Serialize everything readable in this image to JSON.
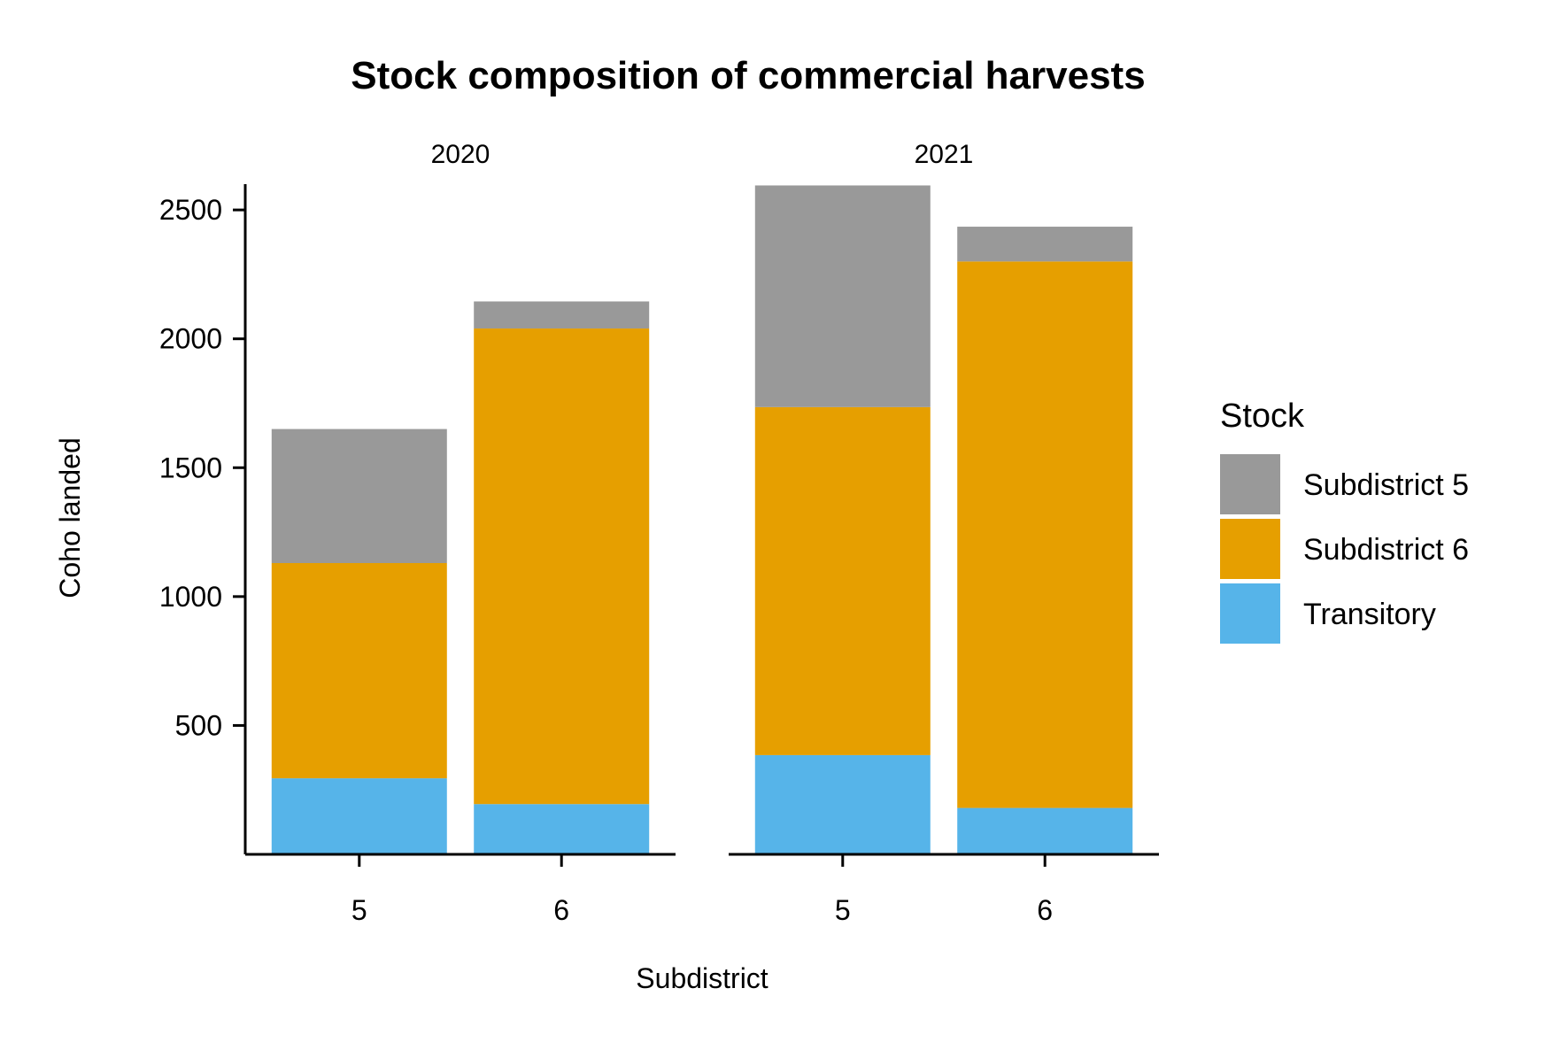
{
  "chart_data": {
    "type": "bar",
    "stacked": true,
    "title": "Stock composition of commercial harvests",
    "xlabel": "Subdistrict",
    "ylabel": "Coho landed",
    "ylim": [
      0,
      2600
    ],
    "yticks": [
      500,
      1000,
      1500,
      2000,
      2500
    ],
    "grid": false,
    "legend": {
      "title": "Stock",
      "placement": "right"
    },
    "facets": [
      {
        "label": "2020",
        "categories": [
          "5",
          "6"
        ],
        "series": [
          {
            "name": "Transitory",
            "values": [
              295,
              195
            ]
          },
          {
            "name": "Subdistrict 6",
            "values": [
              835,
              1845
            ]
          },
          {
            "name": "Subdistrict 5",
            "values": [
              520,
              105
            ]
          }
        ]
      },
      {
        "label": "2021",
        "categories": [
          "5",
          "6"
        ],
        "series": [
          {
            "name": "Transitory",
            "values": [
              385,
              180
            ]
          },
          {
            "name": "Subdistrict 6",
            "values": [
              1350,
              2120
            ]
          },
          {
            "name": "Subdistrict 5",
            "values": [
              860,
              135
            ]
          }
        ]
      }
    ],
    "legend_order": [
      "Subdistrict 5",
      "Subdistrict 6",
      "Transitory"
    ],
    "colors": {
      "Subdistrict 5": "#999999",
      "Subdistrict 6": "#E69F00",
      "Transitory": "#56B4E9"
    }
  }
}
